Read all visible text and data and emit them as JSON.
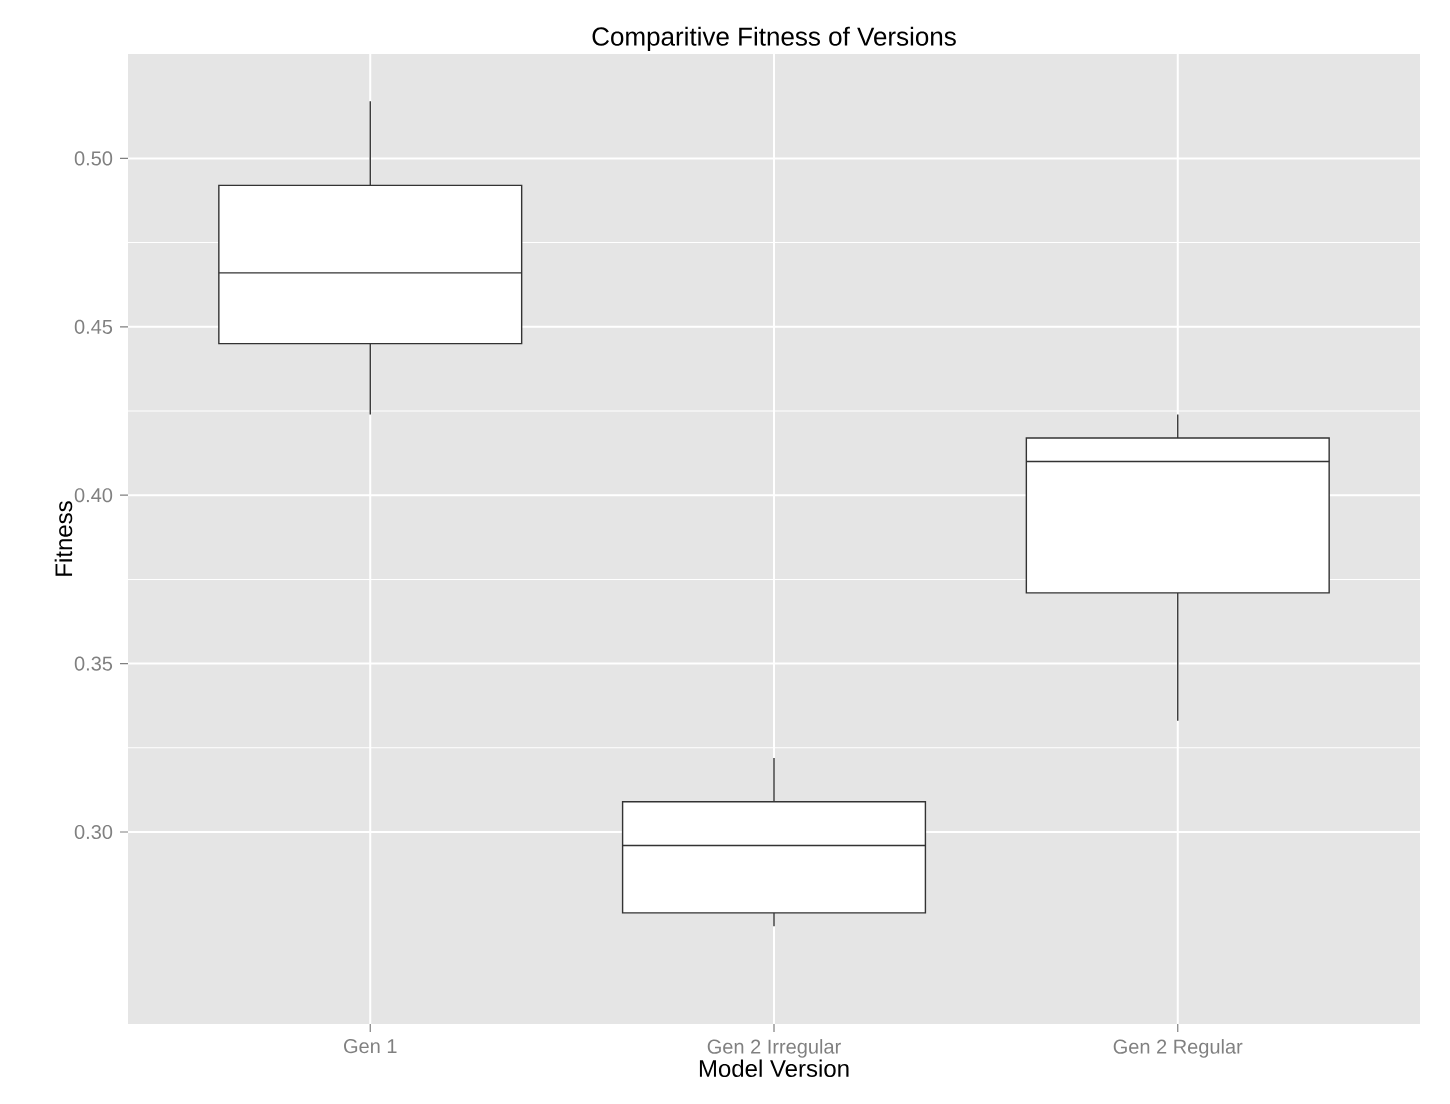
{
  "chart_data": {
    "type": "box",
    "title": "Comparitive Fitness of Versions",
    "xlabel": "Model Version",
    "ylabel": "Fitness",
    "categories": [
      "Gen 1",
      "Gen 2 Irregular",
      "Gen 2 Regular"
    ],
    "boxes": [
      {
        "low": 0.424,
        "q1": 0.445,
        "median": 0.466,
        "q3": 0.492,
        "high": 0.517
      },
      {
        "low": 0.272,
        "q1": 0.276,
        "median": 0.296,
        "q3": 0.309,
        "high": 0.322
      },
      {
        "low": 0.333,
        "q1": 0.371,
        "median": 0.41,
        "q3": 0.417,
        "high": 0.424
      }
    ],
    "ylim": [
      0.243,
      0.531
    ],
    "yticks": [
      {
        "value": 0.3,
        "label": "0.30"
      },
      {
        "value": 0.35,
        "label": "0.35"
      },
      {
        "value": 0.4,
        "label": "0.40"
      },
      {
        "value": 0.45,
        "label": "0.45"
      },
      {
        "value": 0.5,
        "label": "0.50"
      }
    ],
    "grid": true
  }
}
